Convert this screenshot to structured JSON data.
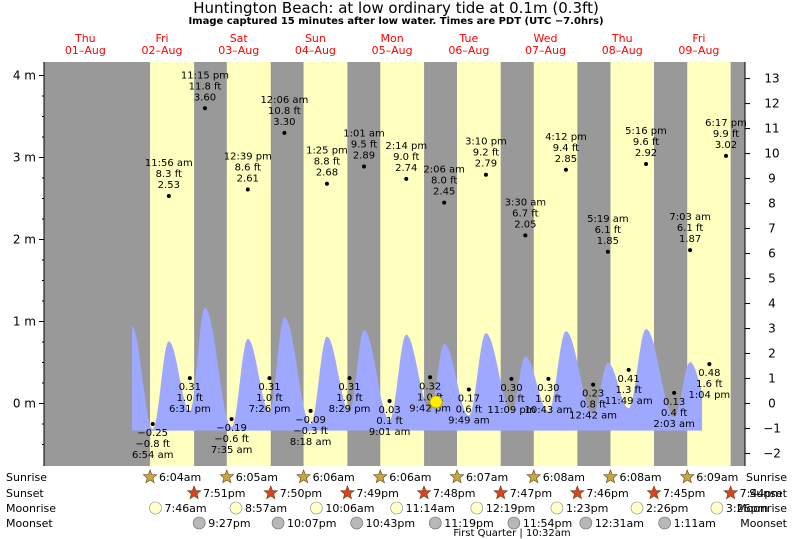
{
  "title": "Huntington Beach: at low  ordinary tide at 0.1m (0.3ft)",
  "subtitle": "Image captured 15 minutes after low water. Times are PDT (UTC −7.0hrs)",
  "days": [
    {
      "day": "Thu",
      "date": "01–Aug"
    },
    {
      "day": "Fri",
      "date": "02–Aug"
    },
    {
      "day": "Sat",
      "date": "03–Aug"
    },
    {
      "day": "Sun",
      "date": "04–Aug"
    },
    {
      "day": "Mon",
      "date": "05–Aug"
    },
    {
      "day": "Tue",
      "date": "06–Aug"
    },
    {
      "day": "Wed",
      "date": "07–Aug"
    },
    {
      "day": "Thu",
      "date": "08–Aug"
    },
    {
      "day": "Fri",
      "date": "09–Aug"
    }
  ],
  "chart_data": {
    "type": "area",
    "title": "Huntington Beach: at low  ordinary tide at 0.1m (0.3ft)",
    "subtitle": "Image captured 15 minutes after low water. Times are PDT (UTC −7.0hrs)",
    "left_axis": {
      "unit": "m",
      "ticks": [
        0,
        1,
        2,
        3,
        4
      ],
      "tick_labels": [
        "0 m",
        "1 m",
        "2 m",
        "3 m",
        "4 m"
      ]
    },
    "right_axis": {
      "unit": "ft",
      "ticks": [
        -2,
        -1,
        0,
        1,
        2,
        3,
        4,
        5,
        6,
        7,
        8,
        9,
        10,
        11,
        12,
        13
      ],
      "tick_labels": [
        "−2 ft",
        "−1 ft",
        "0 ft",
        "1 ft",
        "2 ft",
        "3 ft",
        "4 ft",
        "5 ft",
        "6 ft",
        "7 ft",
        "8 ft",
        "9 ft",
        "10 ft",
        "11 ft",
        "12 ft",
        "13 ft"
      ]
    },
    "ylim_m": [
      -0.7,
      4.3
    ],
    "daylight_bands": [
      {
        "sunrise": "6:04am",
        "sunset": "7:51pm"
      },
      {
        "sunrise": "6:05am",
        "sunset": "7:50pm"
      },
      {
        "sunrise": "6:06am",
        "sunset": "7:49pm"
      },
      {
        "sunrise": "6:06am",
        "sunset": "7:48pm"
      },
      {
        "sunrise": "6:07am",
        "sunset": "7:47pm"
      },
      {
        "sunrise": "6:08am",
        "sunset": "7:46pm"
      },
      {
        "sunrise": "6:08am",
        "sunset": "7:45pm"
      },
      {
        "sunrise": "6:09am",
        "sunset": "7:44pm"
      }
    ],
    "highs": [
      {
        "time": "11:56 am",
        "ft": "8.3 ft",
        "m": "2.53 m",
        "value": 2.53
      },
      {
        "time": "11:15 pm",
        "ft": "11.8 ft",
        "m": "3.60 m",
        "value": 3.6
      },
      {
        "time": "12:39 pm",
        "ft": "8.6 ft",
        "m": "2.61 m",
        "value": 2.61
      },
      {
        "time": "12:06 am",
        "ft": "10.8 ft",
        "m": "3.30 m",
        "value": 3.3
      },
      {
        "time": "1:25 pm",
        "ft": "8.8 ft",
        "m": "2.68 m",
        "value": 2.68
      },
      {
        "time": "1:01 am",
        "ft": "9.5 ft",
        "m": "2.89 m",
        "value": 2.89
      },
      {
        "time": "2:14 pm",
        "ft": "9.0 ft",
        "m": "2.74 m",
        "value": 2.74
      },
      {
        "time": "2:06 am",
        "ft": "8.0 ft",
        "m": "2.45 m",
        "value": 2.45
      },
      {
        "time": "3:10 pm",
        "ft": "9.2 ft",
        "m": "2.79 m",
        "value": 2.79
      },
      {
        "time": "3:30 am",
        "ft": "6.7 ft",
        "m": "2.05 m",
        "value": 2.05
      },
      {
        "time": "4:12 pm",
        "ft": "9.4 ft",
        "m": "2.85 m",
        "value": 2.85
      },
      {
        "time": "5:19 am",
        "ft": "6.1 ft",
        "m": "1.85 m",
        "value": 1.85
      },
      {
        "time": "5:16 pm",
        "ft": "9.6 ft",
        "m": "2.92 m",
        "value": 2.92
      },
      {
        "time": "7:03 am",
        "ft": "6.1 ft",
        "m": "1.87 m",
        "value": 1.87
      },
      {
        "time": "6:17 pm",
        "ft": "9.9 ft",
        "m": "3.02 m",
        "value": 3.02
      }
    ],
    "lows": [
      {
        "time": "6:54 am",
        "ft": "−0.8 ft",
        "m": "−0.25 m",
        "value": -0.25
      },
      {
        "time": "6:31 pm",
        "ft": "1.0 ft",
        "m": "0.31 m",
        "value": 0.31
      },
      {
        "time": "7:35 am",
        "ft": "−0.6 ft",
        "m": "−0.19 m",
        "value": -0.19
      },
      {
        "time": "7:26 pm",
        "ft": "1.0 ft",
        "m": "0.31 m",
        "value": 0.31
      },
      {
        "time": "8:18 am",
        "ft": "−0.3 ft",
        "m": "−0.09 m",
        "value": -0.09
      },
      {
        "time": "8:29 pm",
        "ft": "1.0 ft",
        "m": "0.31 m",
        "value": 0.31
      },
      {
        "time": "9:01 am",
        "ft": "0.1 ft",
        "m": "0.03 m",
        "value": 0.03
      },
      {
        "time": "9:42 pm",
        "ft": "1.0 ft",
        "m": "0.32 m",
        "value": 0.32
      },
      {
        "time": "9:49 am",
        "ft": "0.6 ft",
        "m": "0.17 m",
        "value": 0.17
      },
      {
        "time": "11:09 pm",
        "ft": "1.0 ft",
        "m": "0.30 m",
        "value": 0.3
      },
      {
        "time": "10:43 am",
        "ft": "1.0 ft",
        "m": "0.30 m",
        "value": 0.3
      },
      {
        "time": "12:42 am",
        "ft": "0.8 ft",
        "m": "0.23 m",
        "value": 0.23
      },
      {
        "time": "11:49 am",
        "ft": "1.3 ft",
        "m": "0.41 m",
        "value": 0.41
      },
      {
        "time": "2:03 am",
        "ft": "0.4 ft",
        "m": "0.13 m",
        "value": 0.13
      },
      {
        "time": "1:04 pm",
        "ft": "1.6 ft",
        "m": "0.48 m",
        "value": 0.48
      }
    ]
  },
  "rows": {
    "sunrise_label": "Sunrise",
    "sunset_label": "Sunset",
    "moonrise_label": "Moonrise",
    "moonset_label": "Moonset",
    "moonrise": [
      "7:46am",
      "8:57am",
      "10:06am",
      "11:14am",
      "12:19pm",
      "1:23pm",
      "2:26pm",
      "3:26pm"
    ],
    "moonset": [
      "9:27pm",
      "10:07pm",
      "10:43pm",
      "11:19pm",
      "11:54pm",
      "12:31am",
      "1:11am"
    ],
    "moon_phase": "First Quarter | 10:32am"
  },
  "colors": {
    "night": "#999999",
    "day": "#ffffc0",
    "water": "#9ea8ff",
    "day_label": "#ff0000",
    "star_sun": "#c8a83c",
    "star_set": "#e04020",
    "marker": "#ffee00"
  }
}
